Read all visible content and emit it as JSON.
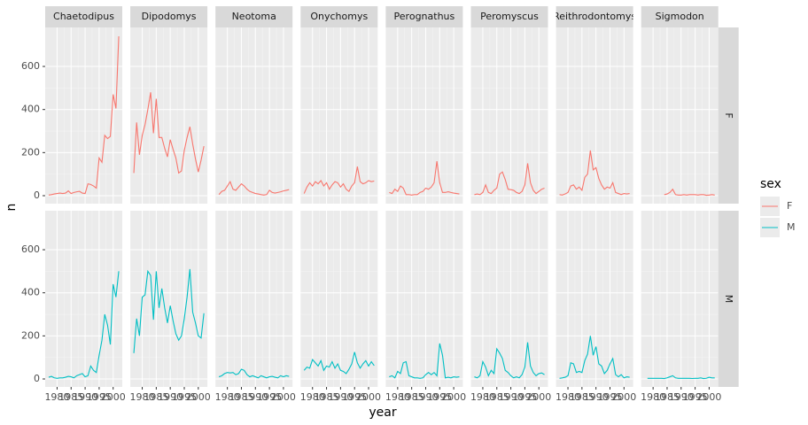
{
  "chart_data": {
    "type": "line",
    "x_label": "year",
    "y_label": "n",
    "legend_title": "sex",
    "x": [
      1977,
      1978,
      1979,
      1980,
      1981,
      1982,
      1983,
      1984,
      1985,
      1986,
      1987,
      1988,
      1989,
      1990,
      1991,
      1992,
      1993,
      1994,
      1995,
      1996,
      1997,
      1998,
      1999,
      2000,
      2001,
      2002
    ],
    "xlim": [
      1975.75,
      2003.25
    ],
    "xticks": [
      1980,
      1985,
      1990,
      1995,
      2000
    ],
    "ylim": [
      -37,
      781
    ],
    "yticks": [
      0,
      200,
      400,
      600
    ],
    "grid": true,
    "series": [
      {
        "name": "F",
        "color": "#F8766D"
      },
      {
        "name": "M",
        "color": "#00BFC4"
      }
    ],
    "facets": [
      {
        "label": "Chaetodipus",
        "values": [
          [
            3,
            5,
            8,
            10,
            12,
            10,
            12,
            22,
            10,
            15,
            18,
            20,
            12,
            10,
            55,
            52,
            45,
            35,
            175,
            155,
            280,
            265,
            275,
            470,
            405,
            740
          ],
          [
            8,
            12,
            5,
            3,
            5,
            5,
            8,
            12,
            10,
            5,
            15,
            20,
            25,
            10,
            15,
            60,
            40,
            30,
            110,
            180,
            300,
            250,
            160,
            440,
            380,
            500
          ]
        ]
      },
      {
        "label": "Dipodomys",
        "values": [
          [
            105,
            340,
            190,
            280,
            330,
            400,
            480,
            290,
            450,
            270,
            270,
            220,
            180,
            260,
            215,
            175,
            105,
            115,
            210,
            270,
            320,
            240,
            170,
            110,
            165,
            230
          ],
          [
            120,
            280,
            200,
            380,
            390,
            500,
            480,
            275,
            500,
            330,
            420,
            330,
            260,
            340,
            270,
            210,
            180,
            200,
            280,
            380,
            510,
            310,
            260,
            200,
            190,
            305
          ]
        ]
      },
      {
        "label": "Neotoma",
        "values": [
          [
            5,
            20,
            25,
            45,
            65,
            30,
            25,
            40,
            55,
            45,
            30,
            20,
            15,
            10,
            8,
            5,
            3,
            5,
            25,
            15,
            12,
            15,
            18,
            22,
            25,
            28
          ],
          [
            10,
            15,
            25,
            30,
            28,
            30,
            20,
            25,
            45,
            40,
            20,
            10,
            15,
            10,
            5,
            15,
            10,
            5,
            10,
            12,
            8,
            5,
            15,
            10,
            15,
            12
          ]
        ]
      },
      {
        "label": "Onychomys",
        "values": [
          [
            10,
            40,
            60,
            45,
            65,
            55,
            70,
            45,
            60,
            30,
            50,
            65,
            60,
            40,
            55,
            30,
            20,
            45,
            60,
            135,
            65,
            55,
            60,
            70,
            65,
            68
          ],
          [
            40,
            55,
            50,
            90,
            75,
            60,
            85,
            40,
            60,
            55,
            80,
            50,
            70,
            40,
            35,
            25,
            45,
            70,
            125,
            75,
            50,
            70,
            85,
            60,
            80,
            62
          ]
        ]
      },
      {
        "label": "Perognathus",
        "values": [
          [
            15,
            10,
            30,
            20,
            45,
            35,
            5,
            5,
            3,
            5,
            5,
            15,
            20,
            35,
            30,
            40,
            60,
            160,
            60,
            15,
            15,
            18,
            15,
            12,
            10,
            8
          ],
          [
            10,
            15,
            5,
            35,
            25,
            75,
            80,
            15,
            10,
            5,
            5,
            3,
            5,
            20,
            30,
            20,
            30,
            15,
            165,
            110,
            5,
            8,
            5,
            10,
            8,
            10
          ]
        ]
      },
      {
        "label": "Peromyscus",
        "values": [
          [
            5,
            8,
            5,
            15,
            50,
            15,
            10,
            25,
            35,
            100,
            110,
            75,
            30,
            28,
            25,
            15,
            10,
            20,
            50,
            150,
            60,
            25,
            10,
            20,
            30,
            35
          ],
          [
            10,
            5,
            15,
            80,
            55,
            15,
            40,
            25,
            140,
            120,
            95,
            40,
            30,
            15,
            5,
            10,
            5,
            20,
            55,
            170,
            60,
            30,
            15,
            25,
            28,
            20
          ]
        ]
      },
      {
        "label": "Reithrodontomys",
        "values": [
          [
            5,
            3,
            8,
            15,
            45,
            50,
            30,
            40,
            25,
            85,
            100,
            210,
            120,
            130,
            80,
            50,
            30,
            40,
            35,
            60,
            15,
            10,
            5,
            10,
            8,
            10
          ],
          [
            3,
            5,
            8,
            15,
            75,
            70,
            30,
            35,
            30,
            85,
            115,
            200,
            110,
            150,
            70,
            60,
            25,
            40,
            70,
            95,
            20,
            10,
            20,
            5,
            10,
            8
          ]
        ]
      },
      {
        "label": "Sigmodon",
        "values": [
          [
            null,
            null,
            null,
            null,
            null,
            null,
            null,
            5,
            8,
            15,
            30,
            5,
            3,
            3,
            5,
            3,
            5,
            5,
            5,
            3,
            5,
            5,
            2,
            3,
            5,
            3
          ],
          [
            null,
            3,
            3,
            3,
            3,
            3,
            3,
            2,
            5,
            10,
            15,
            5,
            3,
            3,
            3,
            3,
            3,
            2,
            3,
            3,
            5,
            2,
            3,
            8,
            5,
            5
          ]
        ]
      }
    ]
  }
}
